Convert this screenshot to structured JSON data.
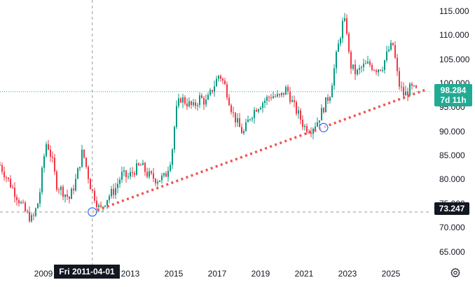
{
  "chart_data": {
    "type": "candlestick",
    "title": "",
    "ylim": [
      61.5,
      117.2
    ],
    "xlim": [
      2007.0,
      2026.6
    ],
    "y_ticks": [
      "115.000",
      "110.000",
      "105.000",
      "100.000",
      "95.000",
      "90.000",
      "85.000",
      "80.000",
      "75.000",
      "70.000",
      "65.000"
    ],
    "y_tick_values": [
      115,
      110,
      105,
      100,
      95,
      90,
      85,
      80,
      75,
      70,
      65
    ],
    "x_ticks": [
      "2009",
      "2013",
      "2015",
      "2017",
      "2019",
      "2021",
      "2023",
      "2025"
    ],
    "x_tick_values": [
      2009,
      2013,
      2015,
      2017,
      2019,
      2021,
      2023,
      2025
    ],
    "price_path": [
      [
        2007.0,
        83.0
      ],
      [
        2007.3,
        80.5
      ],
      [
        2007.6,
        78.0
      ],
      [
        2007.9,
        75.5
      ],
      [
        2008.2,
        73.0
      ],
      [
        2008.5,
        71.5
      ],
      [
        2008.8,
        76.0
      ],
      [
        2009.0,
        84.0
      ],
      [
        2009.15,
        88.0
      ],
      [
        2009.4,
        84.0
      ],
      [
        2009.6,
        79.0
      ],
      [
        2009.9,
        77.5
      ],
      [
        2010.2,
        76.0
      ],
      [
        2010.5,
        80.0
      ],
      [
        2010.8,
        86.0
      ],
      [
        2011.0,
        82.0
      ],
      [
        2011.2,
        78.0
      ],
      [
        2011.4,
        76.0
      ],
      [
        2011.6,
        73.5
      ],
      [
        2011.9,
        76.0
      ],
      [
        2012.3,
        78.0
      ],
      [
        2012.6,
        81.0
      ],
      [
        2012.9,
        80.5
      ],
      [
        2013.2,
        82.0
      ],
      [
        2013.5,
        83.0
      ],
      [
        2013.8,
        81.0
      ],
      [
        2014.2,
        80.0
      ],
      [
        2014.6,
        80.5
      ],
      [
        2014.9,
        85.0
      ],
      [
        2015.1,
        94.0
      ],
      [
        2015.3,
        97.0
      ],
      [
        2015.6,
        96.0
      ],
      [
        2015.9,
        95.0
      ],
      [
        2016.2,
        97.0
      ],
      [
        2016.5,
        96.0
      ],
      [
        2016.9,
        100.0
      ],
      [
        2017.1,
        102.0
      ],
      [
        2017.4,
        99.0
      ],
      [
        2017.7,
        94.0
      ],
      [
        2018.0,
        91.0
      ],
      [
        2018.2,
        89.5
      ],
      [
        2018.5,
        93.0
      ],
      [
        2018.8,
        95.0
      ],
      [
        2019.2,
        96.5
      ],
      [
        2019.5,
        97.5
      ],
      [
        2019.9,
        97.0
      ],
      [
        2020.2,
        99.0
      ],
      [
        2020.5,
        95.5
      ],
      [
        2020.8,
        93.0
      ],
      [
        2021.0,
        91.0
      ],
      [
        2021.3,
        90.5
      ],
      [
        2021.6,
        92.0
      ],
      [
        2021.9,
        95.0
      ],
      [
        2022.2,
        98.0
      ],
      [
        2022.5,
        106.0
      ],
      [
        2022.8,
        113.0
      ],
      [
        2022.95,
        112.0
      ],
      [
        2023.1,
        104.0
      ],
      [
        2023.4,
        102.0
      ],
      [
        2023.7,
        103.5
      ],
      [
        2024.0,
        104.0
      ],
      [
        2024.3,
        103.0
      ],
      [
        2024.6,
        103.5
      ],
      [
        2024.9,
        107.0
      ],
      [
        2025.1,
        108.0
      ],
      [
        2025.35,
        100.0
      ],
      [
        2025.6,
        97.5
      ],
      [
        2025.9,
        99.0
      ],
      [
        2026.2,
        98.3
      ]
    ],
    "trendline": {
      "x": [
        2011.25,
        2026.55
      ],
      "y": [
        73.25,
        98.6
      ],
      "style": "dotted",
      "color": "#ef5350"
    },
    "trend_anchors": [
      {
        "x": 2011.25,
        "y": 73.25
      },
      {
        "x": 2021.9,
        "y": 90.8
      }
    ],
    "crosshair": {
      "x": 2011.25,
      "y": 73.247,
      "date_label": "Fri 2011-04-01",
      "price_label": "73.247"
    },
    "last_price": {
      "value": 98.284,
      "label": "98.284",
      "countdown": "7d 11h"
    },
    "up_color": "#089981",
    "down_color": "#f23645",
    "badge_color": "#22ab94"
  },
  "ui": {
    "settings_icon": "settings-gear-icon"
  }
}
